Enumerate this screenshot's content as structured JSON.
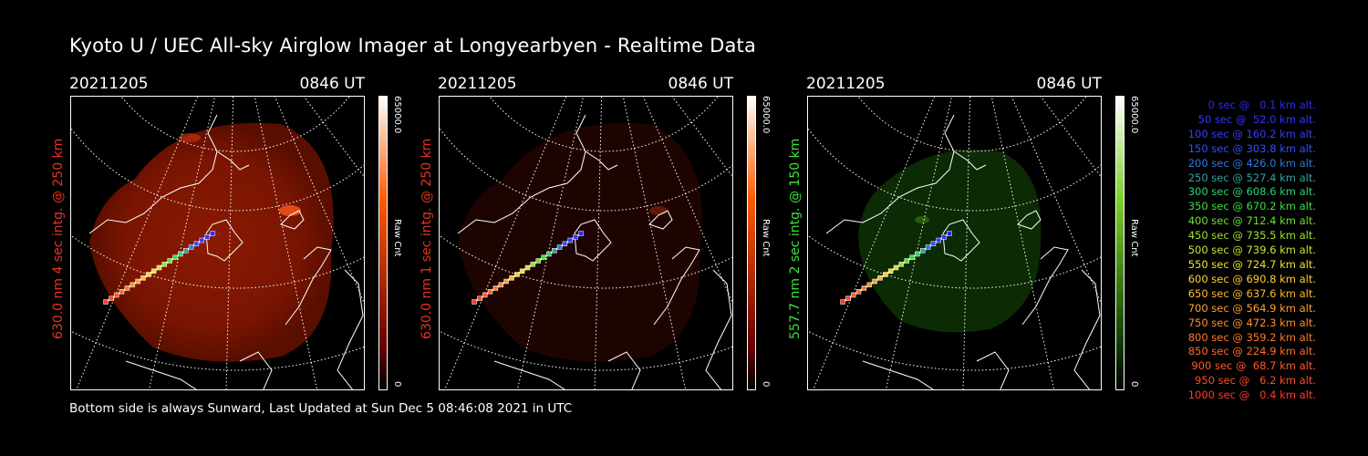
{
  "header": {
    "title": "Kyoto U / UEC All-sky Airglow Imager at Longyearbyen - Realtime Data"
  },
  "footer": {
    "text": "Bottom side is always Sunward, Last Updated at Sun Dec  5 08:46:08 2021 in UTC"
  },
  "panels": [
    {
      "date": "20211205",
      "time": "0846 UT",
      "side_label": "630.0 nm 4 sec intg. @ 250 km",
      "label_color": "#e8321e",
      "cbar_max": "65000.0",
      "cbar_min": "0",
      "cbar_unit": "Raw Cnt",
      "cbar_top": "#ffffff",
      "cbar_mid": "#ff5a00",
      "cbar_low": "#6a0000"
    },
    {
      "date": "20211205",
      "time": "0846 UT",
      "side_label": "630.0 nm 1 sec intg. @ 250 km",
      "label_color": "#e8321e",
      "cbar_max": "65000.0",
      "cbar_min": "0",
      "cbar_unit": "Raw Cnt",
      "cbar_top": "#ffffff",
      "cbar_mid": "#ff5a00",
      "cbar_low": "#6a0000"
    },
    {
      "date": "20211205",
      "time": "0846 UT",
      "side_label": "557.7 nm 2 sec intg. @ 150 km",
      "label_color": "#3fe13a",
      "cbar_max": "65000.0",
      "cbar_min": "0",
      "cbar_unit": "Raw Cnt",
      "cbar_top": "#ffffff",
      "cbar_mid": "#7ccf2a",
      "cbar_low": "#0a3a00"
    }
  ],
  "legend": [
    {
      "text": "0 sec @   0.1 km alt.",
      "color": "#2a2aff"
    },
    {
      "text": "50 sec @  52.0 km alt.",
      "color": "#3434ff"
    },
    {
      "text": "100 sec @ 160.2 km alt.",
      "color": "#3a3aff"
    },
    {
      "text": "150 sec @ 303.8 km alt.",
      "color": "#3050ff"
    },
    {
      "text": "200 sec @ 426.0 km alt.",
      "color": "#2f78d8"
    },
    {
      "text": "250 sec @ 527.4 km alt.",
      "color": "#3aa0a0"
    },
    {
      "text": "300 sec @ 608.6 km alt.",
      "color": "#2fd070"
    },
    {
      "text": "350 sec @ 670.2 km alt.",
      "color": "#3ae040"
    },
    {
      "text": "400 sec @ 712.4 km alt.",
      "color": "#6ae030"
    },
    {
      "text": "450 sec @ 735.5 km alt.",
      "color": "#a0e030"
    },
    {
      "text": "500 sec @ 739.6 km alt.",
      "color": "#d0e030"
    },
    {
      "text": "550 sec @ 724.7 km alt.",
      "color": "#f0e030"
    },
    {
      "text": "600 sec @ 690.8 km alt.",
      "color": "#ffd030"
    },
    {
      "text": "650 sec @ 637.6 km alt.",
      "color": "#ffb830"
    },
    {
      "text": "700 sec @ 564.9 km alt.",
      "color": "#ffa030"
    },
    {
      "text": "750 sec @ 472.3 km alt.",
      "color": "#ff9028"
    },
    {
      "text": "800 sec @ 359.2 km alt.",
      "color": "#ff7a28"
    },
    {
      "text": "850 sec @ 224.9 km alt.",
      "color": "#ff6a28"
    },
    {
      "text": "900 sec @  68.7 km alt.",
      "color": "#ff5a28"
    },
    {
      "text": "950 sec @   6.2 km alt.",
      "color": "#ff4a28"
    },
    {
      "text": "1000 sec @   0.4 km alt.",
      "color": "#ff3a28"
    }
  ]
}
